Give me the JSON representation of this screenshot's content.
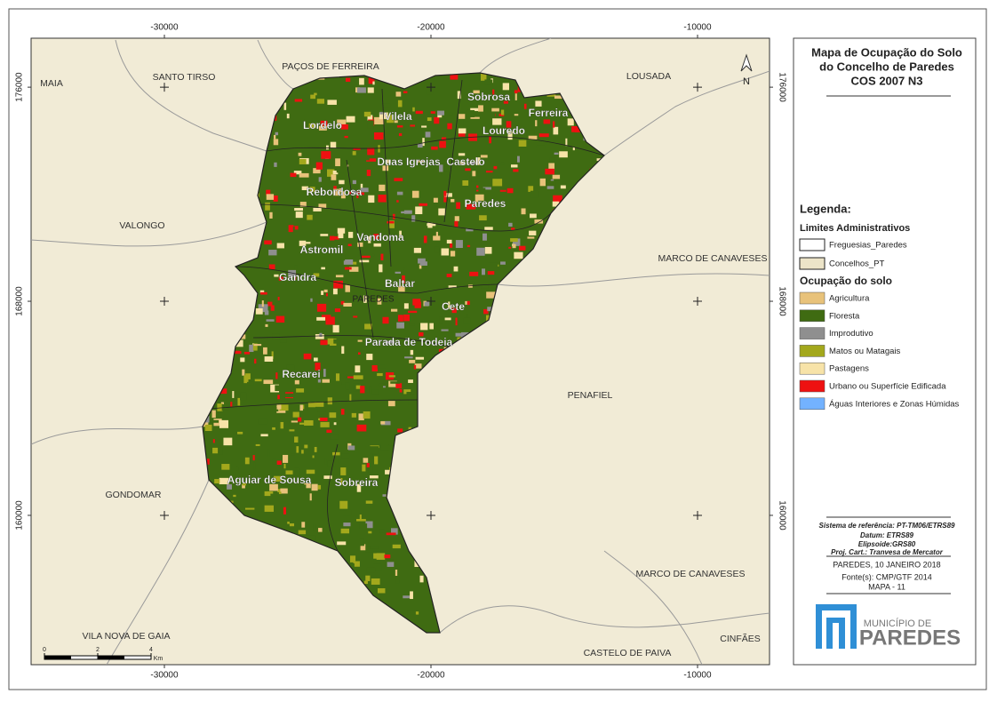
{
  "title": [
    "Mapa de Ocupação do Solo",
    "do Concelho de Paredes",
    "COS 2007 N3"
  ],
  "frame": {
    "xlim": [
      -35000,
      -7300
    ],
    "ylim": [
      154420,
      177830
    ],
    "xticks": [
      -30000,
      -20000,
      -10000
    ],
    "yticks": [
      160000,
      168000,
      176000
    ]
  },
  "north": "N",
  "neighbours": [
    "MAIA",
    "SANTO TIRSO",
    "PAÇOS DE FERREIRA",
    "LOUSADA",
    "VALONGO",
    "MARCO DE CANAVESES",
    "PENAFIEL",
    "GONDOMAR",
    "MARCO DE CANAVESES",
    "VILA NOVA DE GAIA",
    "CASTELO DE PAIVA",
    "CINFÃES",
    "PAREDES"
  ],
  "parishes": [
    "Sobrosa",
    "Vilela",
    "Lordelo",
    "Louredo",
    "Ferreira",
    "Duas Igrejas",
    "Castelo",
    "Rebordosa",
    "Paredes",
    "Vandoma",
    "Astromil",
    "Gandra",
    "Baltar",
    "Cete",
    "Parada de Todeia",
    "Recarei",
    "Aguiar de Sousa",
    "Sobreira"
  ],
  "legend": {
    "heading": "Legenda:",
    "admin_title": "Limites Administrativos",
    "admin": [
      {
        "label": "Freguesias_Paredes",
        "color": "#ffffff"
      },
      {
        "label": "Concelhos_PT",
        "color": "#ece4c8"
      }
    ],
    "land_title": "Ocupação do solo",
    "land": [
      {
        "label": "Agricultura",
        "color": "#e8c27a"
      },
      {
        "label": "Floresta",
        "color": "#3f6b12"
      },
      {
        "label": "Improdutivo",
        "color": "#8f8f8f"
      },
      {
        "label": "Matos ou Matagais",
        "color": "#a3a81c"
      },
      {
        "label": "Pastagens",
        "color": "#f7e3a8"
      },
      {
        "label": "Urbano ou Superfície Edificada",
        "color": "#ee1111"
      },
      {
        "label": "Águas Interiores e Zonas Húmidas",
        "color": "#73b2ff"
      }
    ]
  },
  "info": [
    "Sistema de referência: PT-TM06/ETRS89",
    "Datum: ETRS89",
    "Elipsoide:GRS80",
    "Proj. Cart.: Tranvesa de Mercator",
    "PAREDES, 10 JANEIRO 2018",
    "Fonte(s): CMP/GTF 2014",
    "MAPA - 11"
  ],
  "logo": [
    "MUNICÍPIO DE",
    "PAREDES"
  ],
  "scale": {
    "ticks": [
      0,
      2,
      4
    ],
    "unit": "Km"
  }
}
